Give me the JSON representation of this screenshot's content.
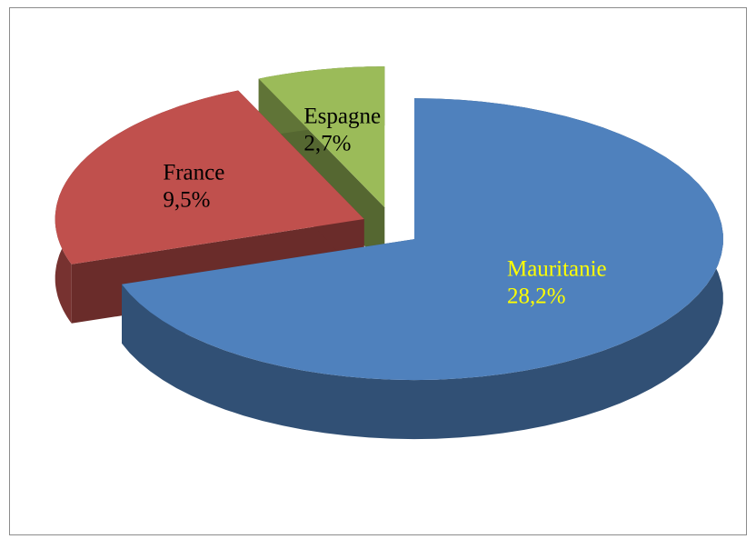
{
  "chart_data": {
    "type": "pie3d",
    "categories": [
      "Mauritanie",
      "France",
      "Espagne"
    ],
    "values": [
      28.2,
      9.5,
      2.7
    ],
    "value_labels": [
      "28,2%",
      "9,5%",
      "2,7%"
    ],
    "colors": [
      "#4f81bd",
      "#c0504d",
      "#9bbb59"
    ],
    "label_colors": [
      "#ffff00",
      "#000000",
      "#000000"
    ]
  }
}
